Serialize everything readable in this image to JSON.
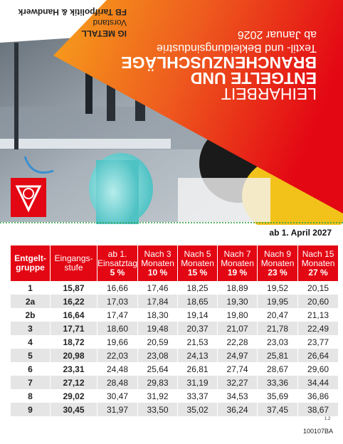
{
  "header": {
    "org": [
      "IG METALL",
      "Vorstand",
      "FB Tarifpolitik & Handwerk"
    ],
    "title": [
      "LEIHARBEIT",
      "ENTGELTE UND",
      "BRANCHENZUSCHLÄGE"
    ],
    "subtitle": "Textil- und Bekleidungsindustrie",
    "date": "ab Januar 2026"
  },
  "table": {
    "caption": "ab 1. April 2027",
    "columns": [
      [
        "Entgelt-",
        "gruppe"
      ],
      [
        "Eingangs-",
        "stufe"
      ],
      [
        "ab 1.",
        "Einsatztag",
        "5 %"
      ],
      [
        "Nach 3",
        "Monaten",
        "10 %"
      ],
      [
        "Nach 5",
        "Monaten",
        "15 %"
      ],
      [
        "Nach 7",
        "Monaten",
        "19 %"
      ],
      [
        "Nach 9",
        "Monaten",
        "23 %"
      ],
      [
        "Nach 15",
        "Monaten",
        "27 %"
      ]
    ],
    "rows": [
      [
        "1",
        "15,87",
        "16,66",
        "17,46",
        "18,25",
        "18,89",
        "19,52",
        "20,15"
      ],
      [
        "2a",
        "16,22",
        "17,03",
        "17,84",
        "18,65",
        "19,30",
        "19,95",
        "20,60"
      ],
      [
        "2b",
        "16,64",
        "17,47",
        "18,30",
        "19,14",
        "19,80",
        "20,47",
        "21,13"
      ],
      [
        "3",
        "17,71",
        "18,60",
        "19,48",
        "20,37",
        "21,07",
        "21,78",
        "22,49"
      ],
      [
        "4",
        "18,72",
        "19,66",
        "20,59",
        "21,53",
        "22,28",
        "23,03",
        "23,77"
      ],
      [
        "5",
        "20,98",
        "22,03",
        "23,08",
        "24,13",
        "24,97",
        "25,81",
        "26,64"
      ],
      [
        "6",
        "23,31",
        "24,48",
        "25,64",
        "26,81",
        "27,74",
        "28,67",
        "29,60"
      ],
      [
        "7",
        "27,12",
        "28,48",
        "29,83",
        "31,19",
        "32,27",
        "33,36",
        "34,44"
      ],
      [
        "8",
        "29,02",
        "30,47",
        "31,92",
        "33,37",
        "34,53",
        "35,69",
        "36,86"
      ],
      [
        "9",
        "30,45",
        "31,97",
        "33,50",
        "35,02",
        "36,24",
        "37,45",
        "38,67"
      ]
    ]
  },
  "footer": {
    "page": "1.2",
    "code": "100107BA"
  }
}
